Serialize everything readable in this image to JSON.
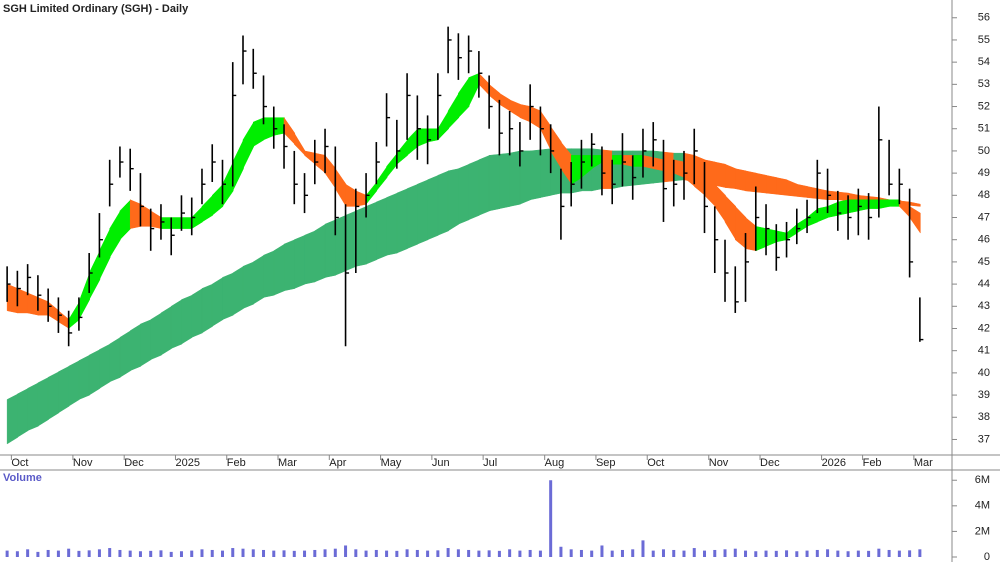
{
  "chart_data": [
    {
      "type": "ohlc",
      "title": "SGH Limited Ordinary (SGH) - Daily",
      "color": "#000000",
      "categories": [
        null,
        "Oct",
        null,
        null,
        null,
        null,
        null,
        "Nov",
        null,
        null,
        null,
        null,
        "Dec",
        null,
        null,
        null,
        null,
        "2025",
        null,
        null,
        null,
        null,
        "Feb",
        null,
        null,
        null,
        null,
        "Mar",
        null,
        null,
        null,
        null,
        "Apr",
        null,
        null,
        null,
        null,
        "May",
        null,
        null,
        null,
        null,
        "Jun",
        null,
        null,
        null,
        null,
        "Jul",
        null,
        null,
        null,
        null,
        null,
        "Aug",
        null,
        null,
        null,
        null,
        "Sep",
        null,
        null,
        null,
        null,
        "Oct",
        null,
        null,
        null,
        null,
        null,
        "Nov",
        null,
        null,
        null,
        null,
        "Dec",
        null,
        null,
        null,
        null,
        null,
        "2026",
        null,
        null,
        null,
        "Feb",
        null,
        null,
        null,
        null,
        "Mar"
      ],
      "high": [
        44.8,
        44.6,
        44.9,
        44.4,
        43.8,
        43.4,
        42.8,
        43.4,
        45.4,
        47.2,
        49.6,
        50.2,
        50.1,
        49.0,
        47.4,
        47.6,
        47.0,
        48.0,
        47.9,
        49.2,
        50.3,
        49.6,
        54.0,
        55.2,
        54.6,
        53.4,
        52.0,
        51.2,
        50.0,
        49.0,
        50.5,
        51.0,
        50.2,
        47.6,
        48.3,
        49.0,
        50.4,
        52.6,
        51.4,
        53.5,
        52.5,
        51.6,
        53.5,
        55.6,
        55.3,
        55.2,
        54.5,
        53.4,
        52.3,
        51.8,
        51.3,
        53.0,
        52.0,
        51.2,
        49.2,
        49.5,
        50.5,
        50.8,
        50.2,
        49.6,
        50.8,
        49.8,
        51.0,
        51.3,
        50.5,
        49.6,
        50.0,
        51.0,
        49.5,
        47.5,
        46.0,
        44.8,
        46.3,
        48.4,
        47.6,
        46.7,
        46.8,
        47.4,
        47.8,
        49.6,
        49.2,
        48.2,
        48.0,
        48.3,
        48.1,
        52.0,
        50.5,
        49.2,
        48.3,
        43.4
      ],
      "low": [
        43.2,
        43.0,
        43.5,
        42.8,
        42.3,
        41.8,
        41.2,
        41.9,
        43.6,
        45.2,
        47.5,
        48.8,
        48.2,
        46.6,
        45.5,
        46.0,
        45.3,
        46.4,
        46.2,
        47.6,
        48.6,
        47.6,
        48.4,
        53.0,
        52.8,
        51.2,
        50.1,
        49.2,
        47.6,
        47.2,
        48.5,
        49.0,
        46.2,
        41.2,
        44.5,
        47.0,
        48.5,
        50.2,
        49.2,
        50.5,
        49.6,
        49.4,
        50.5,
        53.5,
        53.2,
        53.5,
        52.4,
        51.0,
        49.8,
        49.8,
        49.3,
        50.5,
        49.8,
        49.0,
        46.0,
        47.5,
        48.3,
        49.3,
        48.0,
        47.6,
        48.4,
        47.8,
        48.8,
        49.3,
        46.8,
        47.5,
        47.8,
        48.5,
        46.3,
        44.5,
        43.2,
        42.7,
        43.2,
        45.5,
        45.3,
        44.6,
        45.2,
        45.8,
        46.3,
        47.2,
        47.2,
        46.4,
        46.0,
        46.2,
        46.0,
        47.0,
        48.0,
        47.6,
        44.3,
        41.4
      ],
      "close": [
        44.0,
        43.8,
        44.3,
        43.5,
        43.0,
        42.6,
        41.8,
        42.5,
        44.5,
        46.0,
        48.5,
        49.5,
        49.2,
        47.5,
        46.5,
        46.8,
        46.2,
        47.2,
        47.0,
        48.5,
        49.5,
        48.5,
        52.5,
        54.5,
        53.5,
        52.0,
        51.0,
        50.2,
        48.5,
        48.0,
        49.5,
        50.2,
        47.0,
        44.5,
        47.5,
        48.0,
        49.5,
        51.5,
        50.0,
        52.5,
        51.0,
        50.5,
        52.5,
        55.0,
        54.2,
        54.5,
        53.5,
        52.0,
        50.8,
        51.0,
        50.0,
        52.0,
        51.0,
        50.0,
        47.5,
        48.5,
        49.5,
        50.3,
        49.0,
        48.5,
        49.5,
        48.8,
        50.0,
        50.5,
        48.3,
        48.5,
        49.0,
        50.0,
        47.5,
        46.0,
        44.5,
        43.2,
        45.0,
        47.0,
        46.5,
        45.2,
        46.0,
        46.5,
        47.0,
        49.0,
        48.0,
        47.2,
        47.0,
        47.5,
        47.0,
        50.5,
        48.5,
        48.5,
        45.0,
        41.5
      ],
      "bands": [
        {
          "up_color": "#3cb371",
          "down_color": "#ff6a1a",
          "upper": [
            38.8,
            39.05,
            39.3,
            39.55,
            39.8,
            40.05,
            40.3,
            40.55,
            40.8,
            41.05,
            41.3,
            41.6,
            41.9,
            42.2,
            42.4,
            42.7,
            43.0,
            43.3,
            43.5,
            43.8,
            44.0,
            44.3,
            44.5,
            44.8,
            45.0,
            45.3,
            45.5,
            45.8,
            46.0,
            46.2,
            46.4,
            46.7,
            46.9,
            47.1,
            47.3,
            47.5,
            47.7,
            47.9,
            48.1,
            48.3,
            48.5,
            48.7,
            48.9,
            49.1,
            49.2,
            49.4,
            49.6,
            49.8,
            49.85,
            49.9,
            50.0,
            50.0,
            50.05,
            50.1,
            50.1,
            50.1,
            50.1,
            50.1,
            50.05,
            50.0,
            50.0,
            50.0,
            50.0,
            50.0,
            49.95,
            49.9,
            49.9,
            49.8,
            49.6,
            49.5,
            49.4,
            49.2,
            49.1,
            49.0,
            48.9,
            48.8,
            48.7,
            48.5,
            48.4,
            48.3,
            48.2,
            48.15,
            48.1,
            48.0,
            47.95,
            47.9,
            47.8,
            47.75,
            47.7,
            47.6
          ],
          "lower": [
            36.8,
            37.1,
            37.4,
            37.6,
            37.9,
            38.2,
            38.5,
            38.8,
            39.0,
            39.3,
            39.6,
            39.8,
            40.1,
            40.3,
            40.6,
            40.8,
            41.1,
            41.3,
            41.6,
            41.8,
            42.1,
            42.4,
            42.6,
            42.9,
            43.1,
            43.4,
            43.5,
            43.7,
            43.8,
            44.0,
            44.1,
            44.3,
            44.4,
            44.6,
            44.8,
            44.9,
            45.1,
            45.3,
            45.4,
            45.6,
            45.8,
            46.0,
            46.2,
            46.4,
            46.7,
            46.9,
            47.1,
            47.3,
            47.4,
            47.5,
            47.6,
            47.8,
            47.9,
            48.0,
            48.1,
            48.1,
            48.2,
            48.2,
            48.3,
            48.3,
            48.4,
            48.45,
            48.5,
            48.55,
            48.6,
            48.65,
            48.7,
            48.6,
            48.5,
            48.45,
            48.35,
            48.3,
            48.2,
            48.15,
            48.1,
            48.05,
            48.0,
            47.95,
            47.9,
            47.85,
            47.8,
            47.8,
            47.75,
            47.7,
            47.7,
            47.65,
            47.6,
            47.6,
            47.55,
            47.5
          ]
        },
        {
          "up_color": "#00ee00",
          "down_color": "#ff6a1a",
          "upper": [
            44.0,
            43.8,
            43.6,
            43.4,
            43.2,
            42.8,
            42.4,
            43.2,
            44.5,
            45.5,
            46.5,
            47.3,
            47.8,
            47.6,
            47.3,
            47.0,
            47.0,
            47.0,
            47.0,
            47.5,
            48.0,
            48.5,
            49.5,
            50.5,
            51.3,
            51.5,
            51.5,
            51.5,
            50.8,
            50.0,
            49.9,
            49.8,
            49.2,
            48.5,
            48.2,
            48.0,
            48.6,
            49.3,
            49.9,
            50.5,
            51.0,
            51.0,
            51.0,
            51.8,
            52.6,
            53.3,
            53.5,
            53.0,
            52.6,
            52.3,
            52.1,
            52.0,
            51.8,
            51.1,
            50.4,
            49.8,
            49.8,
            49.8,
            49.8,
            49.8,
            49.8,
            49.8,
            49.8,
            49.7,
            49.6,
            49.6,
            49.5,
            49.2,
            48.9,
            48.5,
            48.0,
            47.5,
            47.0,
            46.6,
            46.5,
            46.4,
            46.3,
            46.7,
            47.0,
            47.4,
            47.5,
            47.7,
            47.8,
            47.8,
            47.8,
            47.8,
            47.8,
            47.8,
            47.5,
            47.2
          ],
          "lower": [
            42.8,
            42.7,
            42.7,
            42.6,
            42.6,
            42.3,
            42.0,
            42.4,
            43.3,
            44.2,
            45.2,
            46.0,
            46.5,
            46.6,
            46.6,
            46.5,
            46.5,
            46.5,
            46.5,
            46.8,
            47.1,
            47.5,
            48.2,
            49.2,
            50.2,
            50.5,
            50.7,
            50.8,
            50.3,
            49.8,
            49.4,
            49.0,
            48.3,
            47.5,
            47.5,
            47.6,
            48.2,
            48.8,
            49.4,
            49.8,
            50.2,
            50.4,
            50.5,
            51.0,
            51.5,
            52.0,
            53.0,
            52.5,
            52.1,
            51.8,
            51.5,
            51.3,
            51.0,
            50.0,
            49.2,
            48.5,
            48.8,
            49.2,
            49.5,
            49.4,
            49.4,
            49.3,
            49.3,
            49.2,
            49.1,
            49.0,
            48.8,
            48.4,
            48.0,
            47.5,
            46.8,
            46.0,
            45.6,
            45.5,
            45.7,
            45.9,
            46.0,
            46.3,
            46.6,
            46.8,
            47.0,
            47.1,
            47.2,
            47.3,
            47.4,
            47.4,
            47.5,
            47.5,
            47.0,
            46.3
          ]
        }
      ],
      "ylim": [
        36.3,
        56.8
      ],
      "yticks": [
        37,
        38,
        39,
        40,
        41,
        42,
        43,
        44,
        45,
        46,
        47,
        48,
        49,
        50,
        51,
        52,
        53,
        54,
        55,
        56
      ]
    },
    {
      "type": "bar",
      "title": "Volume",
      "color": "#6b6bd6",
      "values": [
        500000,
        450000,
        600000,
        400000,
        550000,
        500000,
        650000,
        480000,
        520000,
        600000,
        700000,
        550000,
        500000,
        450000,
        480000,
        520000,
        400000,
        450000,
        500000,
        600000,
        550000,
        500000,
        700000,
        650000,
        600000,
        550000,
        500000,
        520000,
        480000,
        500000,
        550000,
        600000,
        650000,
        900000,
        600000,
        500000,
        550000,
        500000,
        480000,
        600000,
        550000,
        500000,
        520000,
        700000,
        600000,
        550000,
        500000,
        520000,
        480000,
        600000,
        500000,
        550000,
        500000,
        6000000,
        800000,
        600000,
        550000,
        500000,
        900000,
        500000,
        550000,
        600000,
        1300000,
        500000,
        600000,
        550000,
        500000,
        700000,
        500000,
        550000,
        600000,
        650000,
        500000,
        450000,
        500000,
        480000,
        520000,
        450000,
        500000,
        550000,
        600000,
        500000,
        450000,
        500000,
        480000,
        650000,
        550000,
        500000,
        520000,
        600000
      ],
      "ylim": [
        0,
        6800000
      ],
      "yticks": [
        0,
        {
          "value": 2000000,
          "label": "2M"
        },
        {
          "value": 4000000,
          "label": "4M"
        },
        {
          "value": 6000000,
          "label": "6M"
        }
      ]
    }
  ]
}
